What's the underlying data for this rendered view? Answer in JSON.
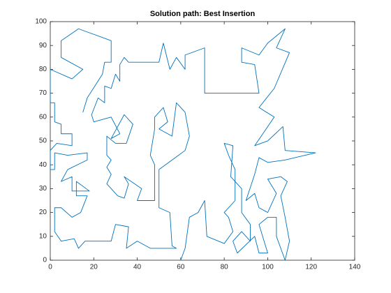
{
  "chart_data": {
    "type": "line",
    "title": "Solution path: Best Insertion",
    "x": [
      60,
      62,
      64,
      68,
      71,
      72,
      80,
      84,
      82,
      80,
      85,
      85,
      82,
      80,
      84,
      83,
      88,
      88,
      92,
      92,
      88,
      84,
      86,
      94,
      96,
      100,
      96,
      100,
      104,
      104,
      108,
      110,
      108,
      106,
      109,
      106,
      100,
      104,
      100,
      96,
      94,
      90,
      94,
      96,
      100,
      108,
      122,
      108,
      107,
      100,
      94,
      103,
      96,
      103,
      110,
      104,
      108,
      100,
      96,
      88,
      88,
      94,
      96,
      86,
      71,
      71,
      62,
      62,
      58,
      55,
      52,
      50,
      36,
      34,
      32,
      32,
      30,
      28,
      25,
      25,
      22,
      19,
      20,
      28,
      32,
      28,
      34,
      38,
      35,
      30,
      26,
      26,
      28,
      26,
      28,
      26,
      31,
      34,
      36,
      34,
      42,
      40,
      48,
      48,
      46,
      48,
      48,
      52,
      54,
      50,
      56,
      58,
      62,
      64,
      62,
      56,
      50,
      50,
      55,
      56,
      58,
      46,
      40,
      35,
      36,
      30,
      28,
      16,
      13,
      11,
      5,
      2,
      2,
      5,
      10,
      14,
      17,
      12,
      12,
      18,
      10,
      10,
      5,
      8,
      17,
      17,
      8,
      2,
      2,
      0,
      0,
      3,
      10,
      10,
      5,
      5,
      2,
      2,
      0,
      0,
      10,
      15,
      5,
      5,
      13,
      28,
      28,
      25,
      24,
      17,
      15
    ],
    "series": [
      {
        "color": "#0072bd",
        "values": [
          0,
          5,
          18,
          20,
          25,
          10,
          7,
          12,
          18,
          20,
          25,
          38,
          44,
          49,
          48,
          35,
          30,
          20,
          15,
          8,
          12,
          8,
          3,
          10,
          3,
          3,
          15,
          18,
          18,
          10,
          0,
          8,
          18,
          27,
          33,
          35,
          34,
          28,
          20,
          22,
          28,
          25,
          36,
          43,
          41,
          42,
          45,
          46,
          56,
          50,
          48,
          60,
          64,
          72,
          87,
          89,
          97,
          91,
          86,
          89,
          83,
          82,
          70,
          70,
          70,
          89,
          86,
          80,
          85,
          80,
          91,
          83,
          83,
          85,
          82,
          75,
          78,
          72,
          73,
          66,
          68,
          61,
          58,
          60,
          53,
          51,
          61,
          57,
          49,
          49,
          52,
          44,
          42,
          39,
          36,
          32,
          27,
          26,
          32,
          35,
          30,
          25,
          25,
          40,
          44,
          55,
          60,
          64,
          58,
          55,
          52,
          66,
          62,
          52,
          46,
          42,
          38,
          22,
          20,
          6,
          5,
          5,
          8,
          5,
          14,
          15,
          8,
          8,
          5,
          9,
          8,
          12,
          22,
          22,
          18,
          20,
          27,
          27,
          33,
          29,
          29,
          35,
          33,
          38,
          42,
          45,
          44,
          45,
          38,
          38,
          46,
          49,
          48,
          53,
          53,
          57,
          58,
          66,
          66,
          80,
          76,
          80,
          85,
          92,
          97,
          92,
          83,
          83,
          78,
          68,
          62
        ]
      }
    ],
    "xlim": [
      0,
      140
    ],
    "xticks": [
      0,
      20,
      40,
      60,
      80,
      100,
      120,
      140
    ],
    "ylim": [
      0,
      100
    ],
    "yticks": [
      0,
      10,
      20,
      30,
      40,
      50,
      60,
      70,
      80,
      90,
      100
    ]
  }
}
